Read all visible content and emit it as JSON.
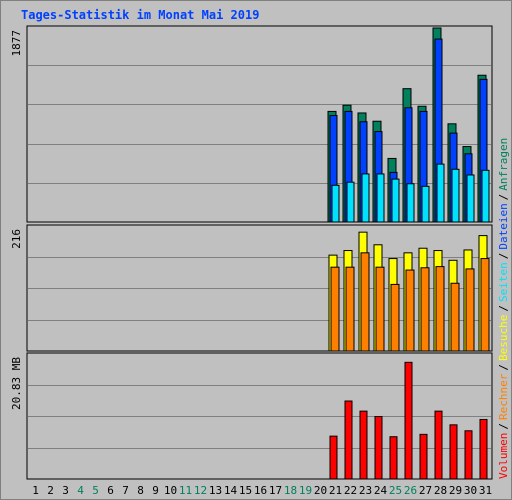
{
  "title": "Tages-Statistik im Monat Mai 2019",
  "colors": {
    "anfragen": "#00805c",
    "dateien": "#0040ff",
    "seiten": "#00e0ff",
    "besuche": "#ffff00",
    "rechner": "#ff8000",
    "volumen": "#ff0000",
    "weekend_label": "#00805c",
    "weekday_label": "#000000",
    "grid": "#808080",
    "panel_bg": "#c0c0c0"
  },
  "legend": {
    "volumen": "Volumen",
    "rechner": "Rechner",
    "besuche": "Besuche",
    "seiten": "Seiten",
    "dateien": "Dateien",
    "anfragen": "Anfragen",
    "sep": "/"
  },
  "chart_data": [
    {
      "type": "bar",
      "name": "hits",
      "ymax_label": "1877",
      "ylim": [
        0,
        1877
      ],
      "categories": [
        "1",
        "2",
        "3",
        "4",
        "5",
        "6",
        "7",
        "8",
        "9",
        "10",
        "11",
        "12",
        "13",
        "14",
        "15",
        "16",
        "17",
        "18",
        "19",
        "20",
        "21",
        "22",
        "23",
        "24",
        "25",
        "26",
        "27",
        "28",
        "29",
        "30",
        "31"
      ],
      "weekend": [
        4,
        5,
        11,
        12,
        18,
        19,
        25,
        26
      ],
      "series": [
        {
          "name": "Anfragen",
          "values": [
            0,
            0,
            0,
            0,
            0,
            0,
            0,
            0,
            0,
            0,
            0,
            0,
            0,
            0,
            0,
            0,
            0,
            0,
            0,
            0,
            1070,
            1130,
            1055,
            975,
            615,
            1290,
            1120,
            1877,
            950,
            730,
            1420
          ]
        },
        {
          "name": "Dateien",
          "values": [
            0,
            0,
            0,
            0,
            0,
            0,
            0,
            0,
            0,
            0,
            0,
            0,
            0,
            0,
            0,
            0,
            0,
            0,
            0,
            0,
            1030,
            1070,
            970,
            875,
            480,
            1105,
            1070,
            1770,
            860,
            660,
            1380
          ]
        },
        {
          "name": "Seiten",
          "values": [
            0,
            0,
            0,
            0,
            0,
            0,
            0,
            0,
            0,
            0,
            0,
            0,
            0,
            0,
            0,
            0,
            0,
            0,
            0,
            0,
            355,
            385,
            465,
            465,
            415,
            370,
            345,
            560,
            510,
            455,
            500
          ]
        }
      ]
    },
    {
      "type": "bar",
      "name": "visits",
      "ymax_label": "216",
      "ylim": [
        0,
        216
      ],
      "series": [
        {
          "name": "Besuche",
          "values": [
            0,
            0,
            0,
            0,
            0,
            0,
            0,
            0,
            0,
            0,
            0,
            0,
            0,
            0,
            0,
            0,
            0,
            0,
            0,
            0,
            167,
            175,
            207,
            185,
            161,
            171,
            179,
            175,
            158,
            176,
            201
          ]
        },
        {
          "name": "Rechner",
          "values": [
            0,
            0,
            0,
            0,
            0,
            0,
            0,
            0,
            0,
            0,
            0,
            0,
            0,
            0,
            0,
            0,
            0,
            0,
            0,
            0,
            146,
            146,
            171,
            146,
            116,
            141,
            145,
            147,
            118,
            143,
            161
          ]
        }
      ]
    },
    {
      "type": "bar",
      "name": "volume",
      "ymax_label": "20.83 MB",
      "ylim": [
        0,
        20.83
      ],
      "series": [
        {
          "name": "Volumen",
          "values": [
            0,
            0,
            0,
            0,
            0,
            0,
            0,
            0,
            0,
            0,
            0,
            0,
            0,
            0,
            0,
            0,
            0,
            0,
            0,
            0,
            7.2,
            13.1,
            11.4,
            10.5,
            7.1,
            19.6,
            7.5,
            11.4,
            9.1,
            8.1,
            10.0
          ]
        }
      ]
    }
  ]
}
